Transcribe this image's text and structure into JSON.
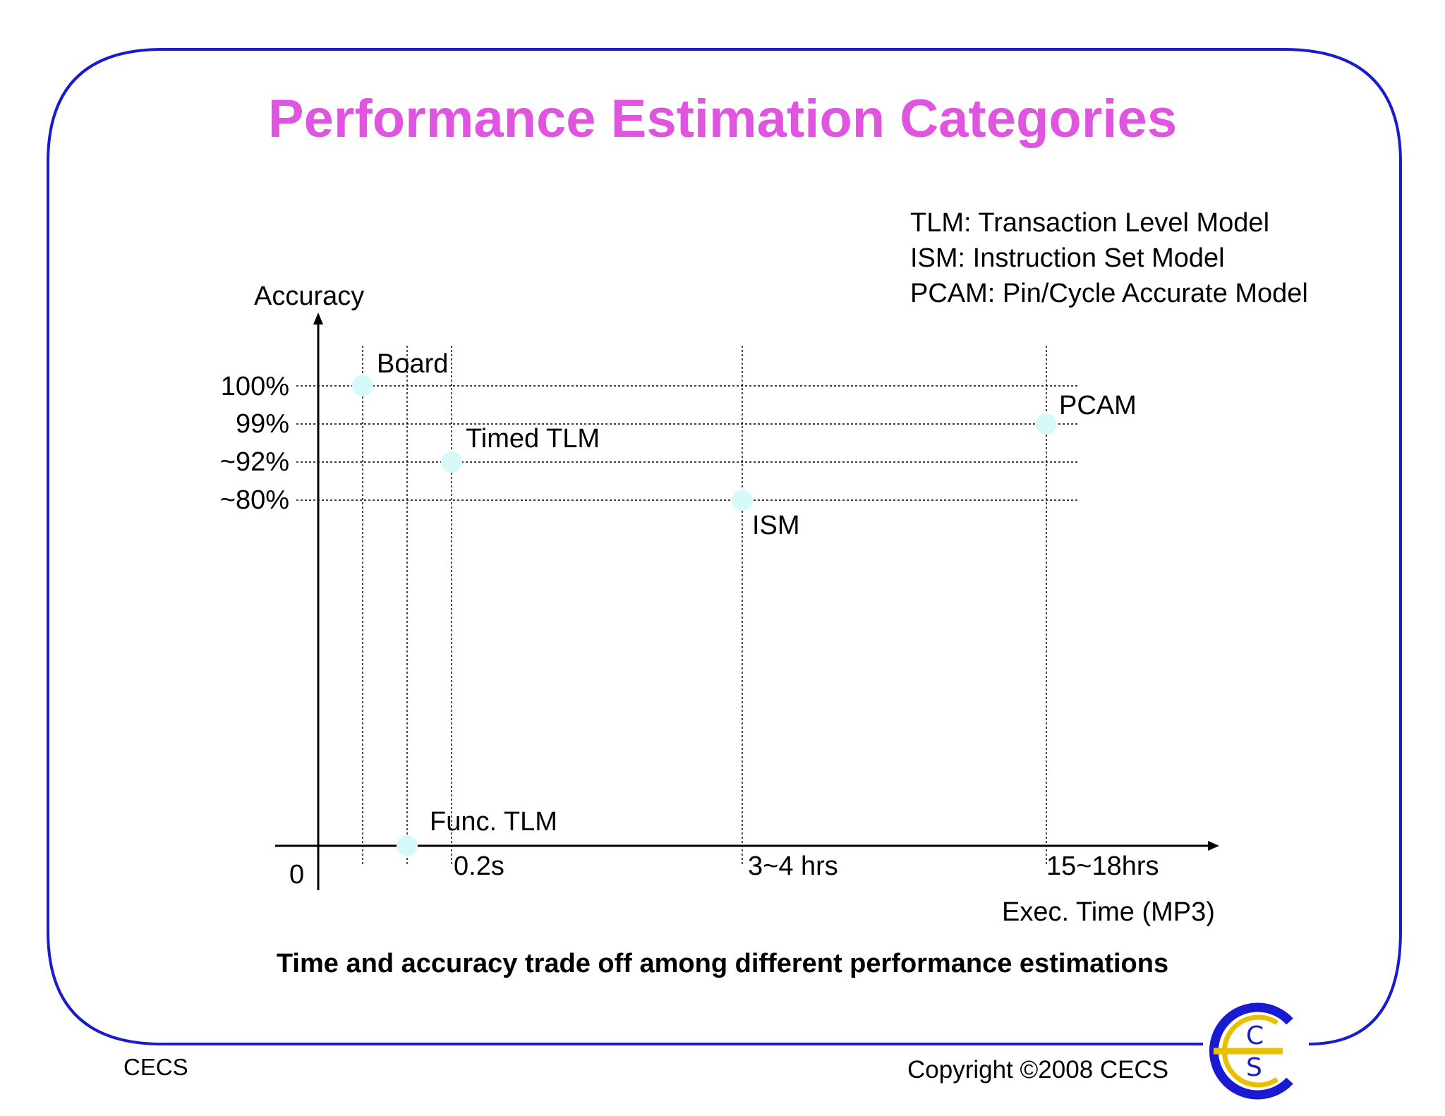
{
  "slide": {
    "title": "Performance Estimation Categories",
    "legend": [
      "TLM: Transaction Level Model",
      "ISM: Instruction Set Model",
      "PCAM: Pin/Cycle Accurate Model"
    ],
    "caption": "Time and accuracy trade off among different performance estimations",
    "footer_left": "CECS",
    "footer_right": "Copyright ©2008 CECS",
    "logo_text": "CECS",
    "border_color": "#1a1ad0",
    "title_color": "#e055e0",
    "point_color": "#d6fafa"
  },
  "chart_data": {
    "type": "scatter",
    "title": "",
    "xlabel": "Exec. Time (MP3)",
    "ylabel": "Accuracy",
    "origin_label": "0",
    "x_ticks": [
      "0.2s",
      "3~4 hrs",
      "15~18hrs"
    ],
    "y_ticks": [
      "100%",
      "99%",
      "~92%",
      "~80%"
    ],
    "grid": true,
    "points": [
      {
        "label": "Board",
        "x_category": "< 0.2s",
        "accuracy": "100%"
      },
      {
        "label": "Func. TLM",
        "x_category": "< 0.2s",
        "accuracy": "0"
      },
      {
        "label": "Timed TLM",
        "x_category": "0.2s",
        "accuracy": "~92%"
      },
      {
        "label": "ISM",
        "x_category": "3~4 hrs",
        "accuracy": "~80%"
      },
      {
        "label": "PCAM",
        "x_category": "15~18hrs",
        "accuracy": "99%"
      }
    ]
  }
}
